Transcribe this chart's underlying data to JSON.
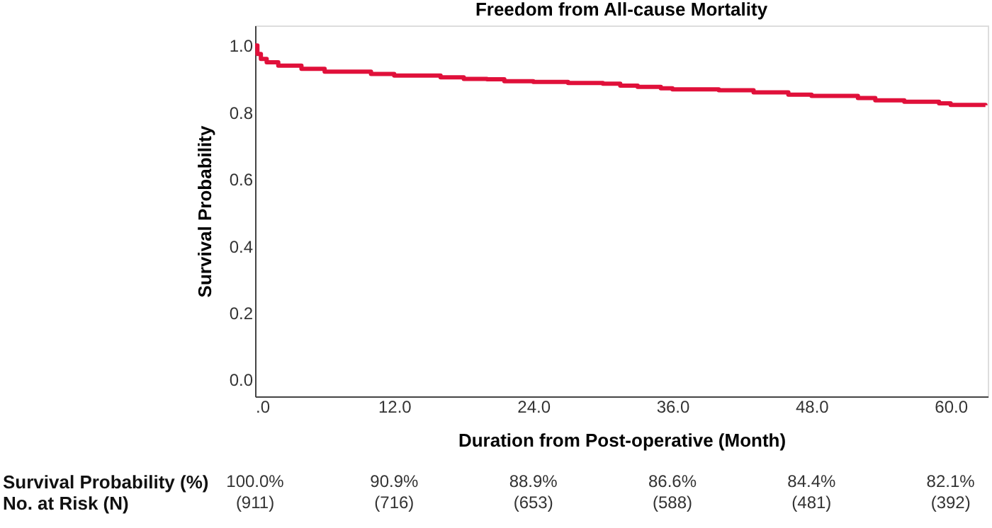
{
  "chart_data": {
    "type": "step",
    "title": "Freedom from All-cause Mortality",
    "xlabel": "Duration from Post-operative (Month)",
    "ylabel": "Survival Probability",
    "x": [
      0,
      0.2,
      0.5,
      1,
      2,
      4,
      6,
      10,
      12,
      16,
      18,
      20,
      21.5,
      24,
      27,
      30,
      31.5,
      33,
      35,
      36,
      40,
      43,
      46,
      48,
      52,
      53.5,
      56,
      59,
      60,
      63
    ],
    "series": [
      {
        "color": "#e0103a",
        "values": [
          1.0,
          0.975,
          0.96,
          0.95,
          0.94,
          0.93,
          0.922,
          0.915,
          0.91,
          0.905,
          0.9,
          0.899,
          0.893,
          0.891,
          0.888,
          0.886,
          0.88,
          0.876,
          0.872,
          0.869,
          0.866,
          0.86,
          0.853,
          0.849,
          0.843,
          0.836,
          0.832,
          0.827,
          0.822,
          0.821
        ]
      }
    ],
    "xlim": [
      0,
      63.2
    ],
    "xticks": [
      {
        "value": 0,
        "label": ".0"
      },
      {
        "value": 12,
        "label": "12.0"
      },
      {
        "value": 24,
        "label": "24.0"
      },
      {
        "value": 36,
        "label": "36.0"
      },
      {
        "value": 48,
        "label": "48.0"
      },
      {
        "value": 60,
        "label": "60.0"
      }
    ],
    "ylim": [
      -0.05,
      1.06
    ],
    "yticks": [
      {
        "value": 0,
        "label": "0.0"
      },
      {
        "value": 0.2,
        "label": "0.2"
      },
      {
        "value": 0.4,
        "label": "0.4"
      },
      {
        "value": 0.6,
        "label": "0.6"
      },
      {
        "value": 0.8,
        "label": "0.8"
      },
      {
        "value": 1.0,
        "label": "1.0"
      }
    ],
    "grid": false,
    "line_style": "solid",
    "marker": "none",
    "annotations": [
      "Survival Probability (%)\nNo. at Risk (N)",
      "100.0%\n(911)",
      "90.9%\n(716)",
      "88.9%\n(653)",
      "86.6%\n(588)",
      "84.4%\n(481)",
      "82.1%\n(392)"
    ]
  }
}
